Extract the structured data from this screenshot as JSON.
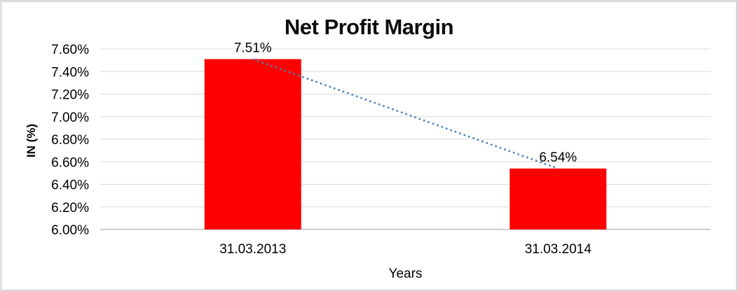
{
  "chart_data": {
    "type": "bar",
    "title": "Net Profit Margin",
    "xlabel": "Years",
    "ylabel": "IN (%)",
    "categories": [
      "31.03.2013",
      "31.03.2014"
    ],
    "series": [
      {
        "name": "Net Profit Margin",
        "values": [
          7.51,
          6.54
        ]
      }
    ],
    "data_labels": [
      "7.51%",
      "6.54%"
    ],
    "ylim": [
      6.0,
      7.6
    ],
    "ytick_step": 0.2,
    "ytick_labels": [
      "7.60%",
      "7.40%",
      "7.20%",
      "7.00%",
      "6.80%",
      "6.60%",
      "6.40%",
      "6.20%",
      "6.00%"
    ],
    "grid": true,
    "legend": "none",
    "trendline": {
      "type": "linear",
      "style": "dotted",
      "start_value": 7.51,
      "end_value": 6.54
    },
    "colors": {
      "bar": "#FF0000",
      "trendline": "#4E81BD",
      "gridline": "#D9D9D9",
      "axis_line": "#BFBFBF",
      "text": "#000000",
      "background": "#FFFFFF"
    }
  }
}
